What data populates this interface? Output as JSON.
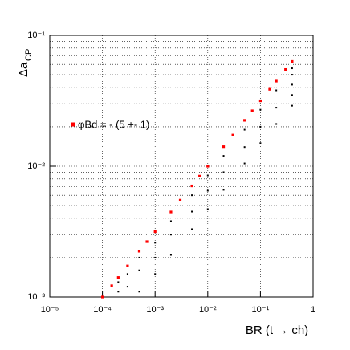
{
  "chart_data": {
    "type": "scatter",
    "xlabel": "BR (t → ch)",
    "ylabel": "Δa",
    "ylabel_sub": "CP",
    "log_x": true,
    "log_y": true,
    "grid": true,
    "xlim": [
      1e-05,
      1
    ],
    "ylim": [
      0.001,
      0.1
    ],
    "xticks": [
      {
        "value": 1e-05,
        "label": "10⁻⁵"
      },
      {
        "value": 0.0001,
        "label": "10⁻⁴"
      },
      {
        "value": 0.001,
        "label": "10⁻³"
      },
      {
        "value": 0.01,
        "label": "10⁻²"
      },
      {
        "value": 0.1,
        "label": "10⁻¹"
      },
      1
    ],
    "yticks": [
      {
        "value": 0.001,
        "label": "10⁻³"
      },
      {
        "value": 0.01,
        "label": "10⁻²"
      },
      {
        "value": 0.1,
        "label": "10⁻¹"
      }
    ],
    "yminorticks": [
      0.002,
      0.003,
      0.004,
      0.005,
      0.006,
      0.007,
      0.008,
      0.009,
      0.02,
      0.03,
      0.04,
      0.05,
      0.06,
      0.07,
      0.08,
      0.09
    ],
    "series": [
      {
        "color": "#000000",
        "x": [
          0.0002,
          0.0002,
          0.0003,
          0.0003,
          0.0005,
          0.0005,
          0.0005,
          0.001,
          0.001,
          0.001,
          0.002,
          0.002,
          0.002,
          0.005,
          0.005,
          0.005,
          0.01,
          0.01,
          0.01,
          0.02,
          0.02,
          0.02,
          0.05,
          0.05,
          0.05,
          0.1,
          0.1,
          0.1,
          0.2,
          0.2,
          0.2,
          0.4,
          0.4,
          0.4,
          0.4,
          0.4
        ],
        "y": [
          0.0011,
          0.0013,
          0.0012,
          0.0015,
          0.0011,
          0.0016,
          0.002,
          0.0015,
          0.002,
          0.0026,
          0.0021,
          0.003,
          0.0038,
          0.0033,
          0.0045,
          0.006,
          0.0047,
          0.0065,
          0.0085,
          0.0066,
          0.009,
          0.012,
          0.0105,
          0.014,
          0.019,
          0.015,
          0.02,
          0.027,
          0.021,
          0.028,
          0.038,
          0.029,
          0.035,
          0.042,
          0.05,
          0.056
        ]
      },
      {
        "name": "φBd = - (5 +- 1)",
        "color": "#ff0000",
        "x": [
          0.0001,
          0.00015,
          0.0002,
          0.0003,
          0.0005,
          0.0007,
          0.001,
          0.002,
          0.003,
          0.005,
          0.007,
          0.01,
          0.02,
          0.03,
          0.05,
          0.07,
          0.1,
          0.15,
          0.2,
          0.3,
          0.4
        ],
        "y": [
          0.001,
          0.00122,
          0.00141,
          0.00173,
          0.00224,
          0.00265,
          0.00316,
          0.00447,
          0.0055,
          0.00707,
          0.0084,
          0.01,
          0.0141,
          0.0173,
          0.0224,
          0.0265,
          0.0316,
          0.0387,
          0.0447,
          0.0548,
          0.0632
        ]
      }
    ]
  }
}
